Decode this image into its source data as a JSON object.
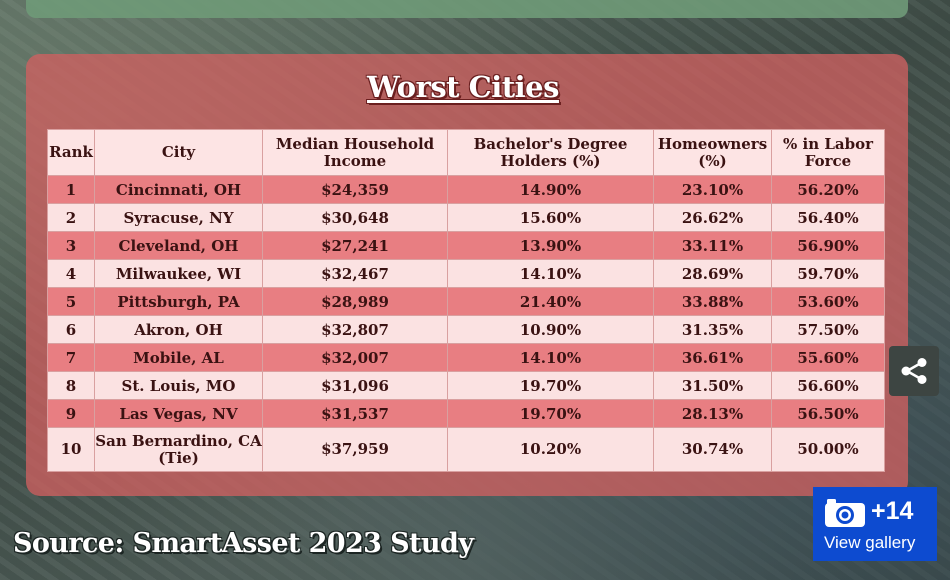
{
  "title": "Worst Cities",
  "table": {
    "headers": [
      "Rank",
      "City",
      "Median Household Income",
      "Bachelor's Degree Holders (%)",
      "Homeowners (%)",
      "% in Labor Force"
    ],
    "rows": [
      [
        "1",
        "Cincinnati, OH",
        "$24,359",
        "14.90%",
        "23.10%",
        "56.20%"
      ],
      [
        "2",
        "Syracuse, NY",
        "$30,648",
        "15.60%",
        "26.62%",
        "56.40%"
      ],
      [
        "3",
        "Cleveland, OH",
        "$27,241",
        "13.90%",
        "33.11%",
        "56.90%"
      ],
      [
        "4",
        "Milwaukee, WI",
        "$32,467",
        "14.10%",
        "28.69%",
        "59.70%"
      ],
      [
        "5",
        "Pittsburgh, PA",
        "$28,989",
        "21.40%",
        "33.88%",
        "53.60%"
      ],
      [
        "6",
        "Akron, OH",
        "$32,807",
        "10.90%",
        "31.35%",
        "57.50%"
      ],
      [
        "7",
        "Mobile, AL",
        "$32,007",
        "14.10%",
        "36.61%",
        "55.60%"
      ],
      [
        "8",
        "St. Louis, MO",
        "$31,096",
        "19.70%",
        "31.50%",
        "56.60%"
      ],
      [
        "9",
        "Las Vegas, NV",
        "$31,537",
        "19.70%",
        "28.13%",
        "56.50%"
      ],
      [
        "10",
        "San Bernardino, CA (Tie)",
        "$37,959",
        "10.20%",
        "30.74%",
        "50.00%"
      ]
    ]
  },
  "source": "Source: SmartAsset 2023 Study",
  "gallery": {
    "count": "+14",
    "label": "View gallery",
    "icon": "camera-icon"
  },
  "share": {
    "icon": "share-icon"
  },
  "colors": {
    "odd_row": "#e87e82",
    "even_row": "#fbe2e2",
    "panel": "#ce6060",
    "gallery_bg": "#0d4bd0"
  }
}
